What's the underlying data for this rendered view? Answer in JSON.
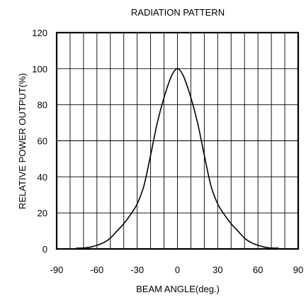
{
  "chart_data": {
    "type": "line",
    "title": "RADIATION PATTERN",
    "xlabel": "BEAM ANGLE(deg.)",
    "ylabel": "RELATIVE POWER OUTPUT(%)",
    "xlim": [
      -90,
      90
    ],
    "ylim": [
      0,
      120
    ],
    "x_ticks": [
      -90,
      -60,
      -30,
      0,
      30,
      60,
      90
    ],
    "y_ticks": [
      0,
      20,
      40,
      60,
      80,
      100,
      120
    ],
    "x_grid": [
      -80,
      -70,
      -60,
      -50,
      -40,
      -30,
      -20,
      -10,
      0,
      10,
      20,
      30,
      40,
      50,
      60,
      70,
      80
    ],
    "y_grid": [
      20,
      40,
      60,
      80,
      100
    ],
    "grid": true,
    "series": [
      {
        "x": [
          -75,
          -70,
          -65,
          -60,
          -55,
          -50,
          -45,
          -40,
          -35,
          -30,
          -25,
          -20,
          -15,
          -10,
          -5,
          -2,
          0,
          2,
          5,
          10,
          15,
          20,
          25,
          30,
          35,
          40,
          45,
          50,
          55,
          60,
          65,
          70,
          75
        ],
        "y": [
          0.5,
          0.5,
          1,
          2,
          3.5,
          6,
          10,
          14,
          19,
          25,
          35,
          52,
          70,
          84,
          95,
          99,
          100,
          99,
          95,
          84,
          70,
          52,
          35,
          25,
          19,
          14,
          10,
          6,
          3.5,
          2,
          1,
          0.5,
          0.5
        ]
      }
    ]
  }
}
